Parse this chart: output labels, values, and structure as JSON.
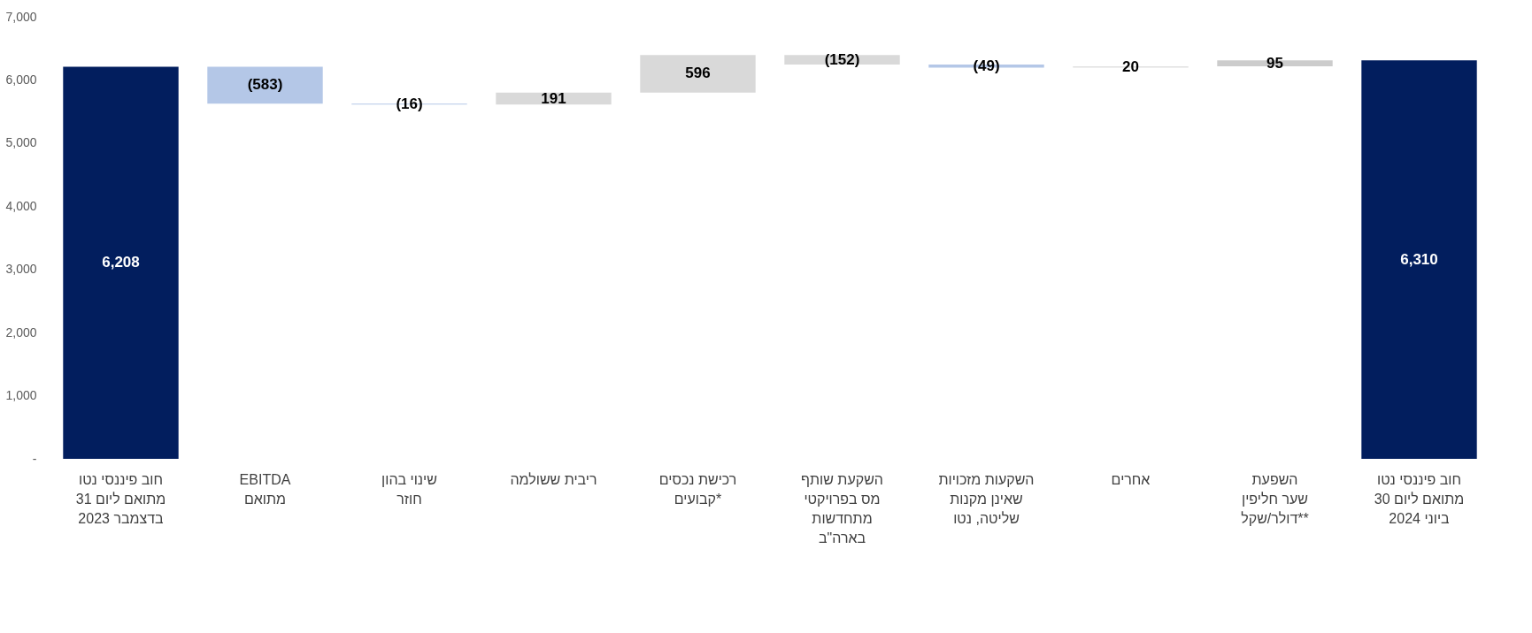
{
  "chart_data": {
    "type": "bar",
    "categories": [
      "חוב פיננסי נטו\nמתואם ליום 31\nבדצמבר 2023",
      "EBITDA\nמתואם",
      "שינוי בהון\nחוזר",
      "ריבית ששולמה",
      "רכישת נכסים\nקבועים*",
      "השקעת שותף\nמס בפרויקטי\nמתחדשות\nבארה\"ב",
      "השקעות מזכויות\nשאינן מקנות\nשליטה, נטו",
      "אחרים",
      "השפעת\nשער חליפין\nדולר/שקל**",
      "חוב פיננסי נטו\nמתואם ליום 30\nביוני 2024"
    ],
    "values": [
      6208,
      -583,
      -16,
      191,
      596,
      -152,
      -49,
      20,
      95,
      6310
    ],
    "base": [
      0,
      6208,
      5625,
      5609,
      5800,
      6396,
      6244,
      6195,
      6215,
      0
    ],
    "colors": [
      "#021e5e",
      "#b4c7e7",
      "#b4c7e7",
      "#d9d9d9",
      "#d9d9d9",
      "#d9d9d9",
      "#b4c7e7",
      "#e0e0e0",
      "#cccccc",
      "#021e5e"
    ],
    "value_labels": [
      "6,208",
      "(583)",
      "(16)",
      "191",
      "596",
      "(152)",
      "(49)",
      "20",
      "95",
      "6,310"
    ],
    "ylim": [
      0,
      7000
    ],
    "yticks": [
      {
        "value": 0,
        "label": "-"
      },
      {
        "value": 1000,
        "label": "1,000"
      },
      {
        "value": 2000,
        "label": "2,000"
      },
      {
        "value": 3000,
        "label": "3,000"
      },
      {
        "value": 4000,
        "label": "4,000"
      },
      {
        "value": 5000,
        "label": "5,000"
      },
      {
        "value": 6000,
        "label": "6,000"
      },
      {
        "value": 7000,
        "label": "7,000"
      }
    ],
    "grid": false
  }
}
